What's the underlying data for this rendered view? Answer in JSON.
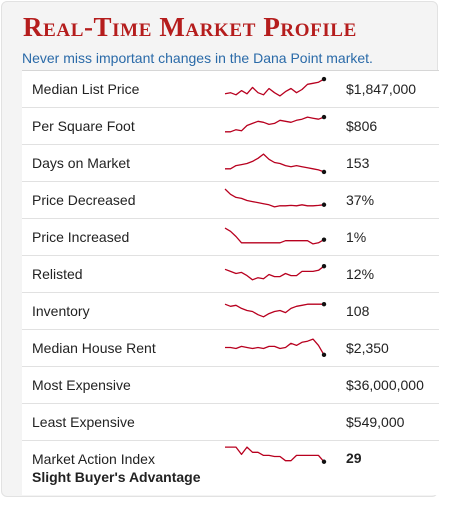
{
  "header": {
    "title": "Real-Time Market Profile",
    "subtitle": "Never miss important changes in the Dana Point market."
  },
  "colors": {
    "title": "#b51d1d",
    "subtitle": "#2a6aa8",
    "sparkline": "#b8001f"
  },
  "rows": [
    {
      "label": "Median List Price",
      "value": "$1,847,000",
      "spark": [
        0.25,
        0.3,
        0.2,
        0.4,
        0.25,
        0.55,
        0.3,
        0.2,
        0.5,
        0.3,
        0.15,
        0.35,
        0.5,
        0.3,
        0.45,
        0.7,
        0.75,
        0.8,
        0.95
      ]
    },
    {
      "label": "Per Square Foot",
      "value": "$806",
      "spark": [
        0.2,
        0.2,
        0.3,
        0.25,
        0.5,
        0.6,
        0.7,
        0.65,
        0.55,
        0.6,
        0.75,
        0.7,
        0.65,
        0.75,
        0.8,
        0.9,
        0.85,
        0.8,
        0.9
      ]
    },
    {
      "label": "Days on Market",
      "value": "153",
      "spark": [
        0.2,
        0.2,
        0.35,
        0.4,
        0.45,
        0.55,
        0.7,
        0.9,
        0.65,
        0.5,
        0.45,
        0.35,
        0.3,
        0.35,
        0.3,
        0.25,
        0.2,
        0.15,
        0.05
      ]
    },
    {
      "label": "Price Decreased",
      "value": "37%",
      "spark": [
        1.0,
        0.75,
        0.6,
        0.55,
        0.45,
        0.4,
        0.35,
        0.3,
        0.25,
        0.15,
        0.2,
        0.2,
        0.22,
        0.2,
        0.25,
        0.2,
        0.2,
        0.22,
        0.25
      ]
    },
    {
      "label": "Price Increased",
      "value": "1%",
      "spark": [
        0.9,
        0.75,
        0.5,
        0.2,
        0.2,
        0.2,
        0.2,
        0.2,
        0.2,
        0.2,
        0.2,
        0.3,
        0.3,
        0.3,
        0.3,
        0.3,
        0.15,
        0.2,
        0.35
      ]
    },
    {
      "label": "Relisted",
      "value": "12%",
      "spark": [
        0.7,
        0.6,
        0.5,
        0.55,
        0.4,
        0.2,
        0.3,
        0.25,
        0.45,
        0.35,
        0.35,
        0.5,
        0.4,
        0.4,
        0.6,
        0.6,
        0.6,
        0.65,
        0.85
      ]
    },
    {
      "label": "Inventory",
      "value": "108",
      "spark": [
        0.8,
        0.7,
        0.75,
        0.6,
        0.5,
        0.45,
        0.3,
        0.2,
        0.35,
        0.45,
        0.5,
        0.4,
        0.6,
        0.7,
        0.75,
        0.8,
        0.8,
        0.8,
        0.8
      ]
    },
    {
      "label": "Median House Rent",
      "value": "$2,350",
      "spark": [
        0.5,
        0.5,
        0.45,
        0.55,
        0.5,
        0.45,
        0.5,
        0.45,
        0.55,
        0.55,
        0.45,
        0.5,
        0.7,
        0.6,
        0.75,
        0.8,
        0.9,
        0.6,
        0.15
      ]
    },
    {
      "label": "Most Expensive",
      "value": "$36,000,000"
    },
    {
      "label": "Least Expensive",
      "value": "$549,000"
    }
  ],
  "market_action": {
    "label": "Market Action Index",
    "status": "Slight Buyer's Advantage",
    "value": "29",
    "spark": [
      0.95,
      0.95,
      0.95,
      0.6,
      0.95,
      0.7,
      0.7,
      0.55,
      0.55,
      0.5,
      0.5,
      0.3,
      0.3,
      0.55,
      0.55,
      0.55,
      0.55,
      0.55,
      0.25
    ]
  }
}
